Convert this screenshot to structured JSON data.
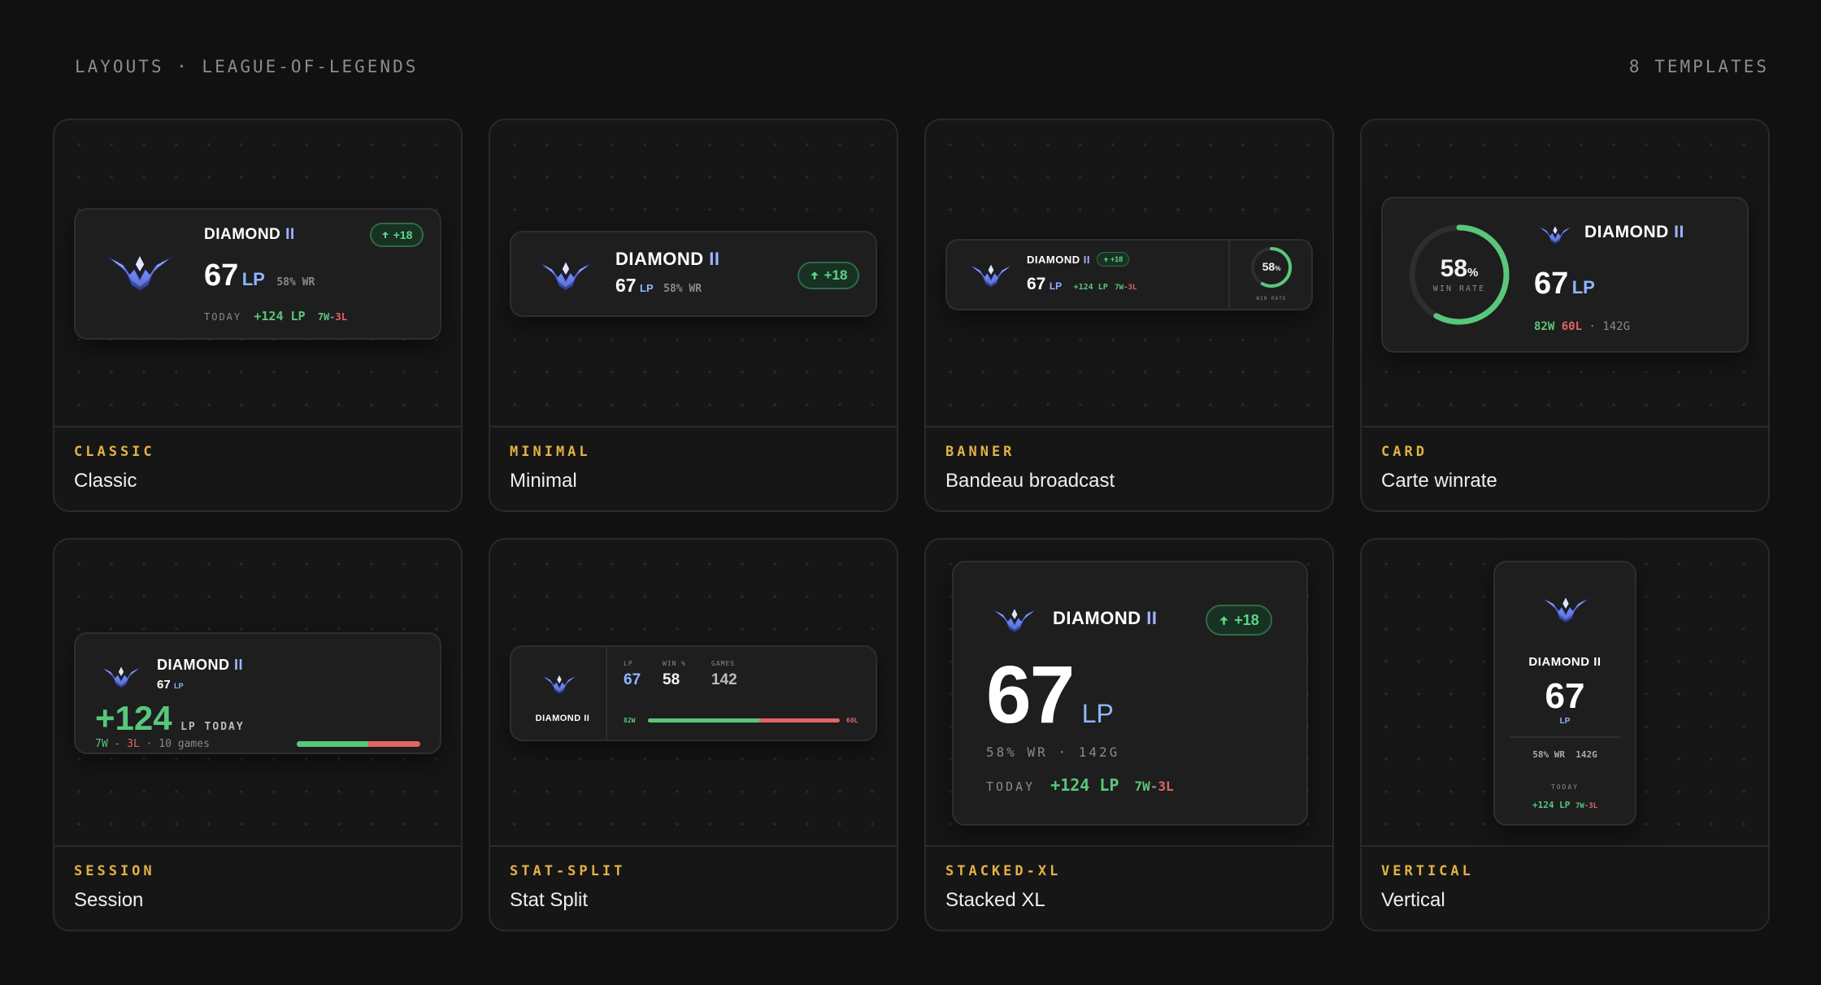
{
  "header": {
    "title": "LAYOUTS · LEAGUE-OF-LEGENDS",
    "count": "8 TEMPLATES"
  },
  "colors": {
    "accent": "#e3b341",
    "win": "#59c77a",
    "loss": "#e26464",
    "lp": "#8fb7ff"
  },
  "rank": {
    "tier": "DIAMOND",
    "division": "II",
    "lp": "67",
    "lp_unit": "LP"
  },
  "stats": {
    "wr": "58% WR",
    "win_rate_pct": "58",
    "pct_sign": "%",
    "win_rate_label": "WIN RATE",
    "today_label": "TODAY",
    "today_lp": "+124 LP",
    "today_record_w": "7W",
    "today_record_sep": "-",
    "today_record_l": "3L",
    "delta": "+18",
    "wins": "82W",
    "losses": "60L",
    "games": "142G",
    "games_count": "142",
    "session_gain": "+124",
    "session_unit": "LP TODAY",
    "session_games": "· 10 games",
    "split_lp_label": "LP",
    "split_wr_label": "WIN %",
    "split_games_label": "GAMES",
    "split_wr_value": "58",
    "wr_games": "58% WR · 142G",
    "win_fraction": 0.58
  },
  "templates": [
    {
      "tag": "CLASSIC",
      "name": "Classic"
    },
    {
      "tag": "MINIMAL",
      "name": "Minimal"
    },
    {
      "tag": "BANNER",
      "name": "Bandeau broadcast"
    },
    {
      "tag": "CARD",
      "name": "Carte winrate"
    },
    {
      "tag": "SESSION",
      "name": "Session"
    },
    {
      "tag": "STAT-SPLIT",
      "name": "Stat Split"
    },
    {
      "tag": "STACKED-XL",
      "name": "Stacked XL"
    },
    {
      "tag": "VERTICAL",
      "name": "Vertical"
    }
  ],
  "icons": {
    "crest": "diamond-crest-icon",
    "arrow": "arrow-up-icon"
  }
}
